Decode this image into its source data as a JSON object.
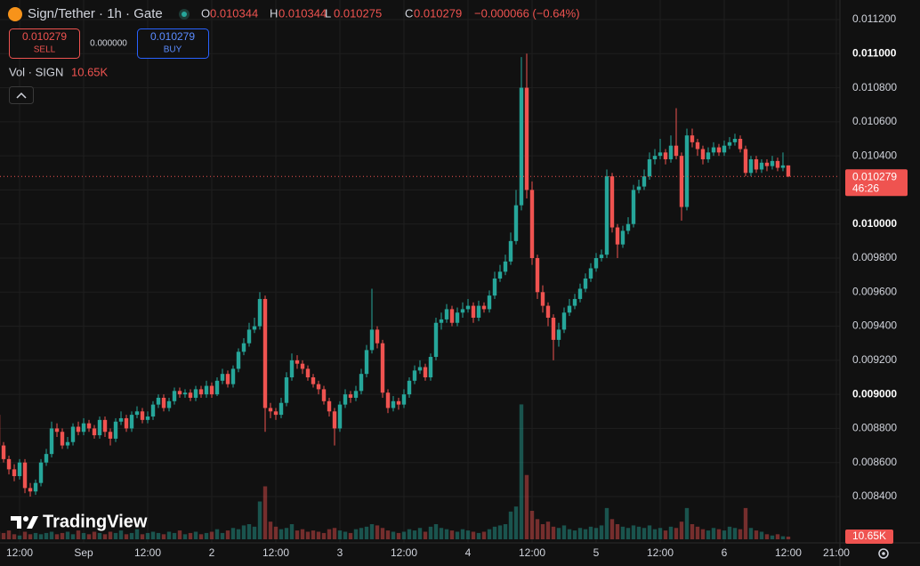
{
  "chart_data": {
    "type": "candlestick",
    "title": "Sign/Tether · 1h · Gate",
    "ohlc_letters": [
      "O",
      "H",
      "L",
      "C"
    ],
    "change_label": "−0.000066 (−0.64%)",
    "sell_label": "SELL",
    "buy_label": "BUY",
    "spread_label": "0.000000",
    "volume_title": "Vol · SIGN",
    "volume_value_label": "10.65K",
    "countdown": "46:26",
    "watermark": "TradingView",
    "up_color": "#26a69a",
    "down_color": "#ef5350",
    "grid": true,
    "xlim": [
      0.33,
      157.67
    ],
    "xticks": [
      {
        "value": 4,
        "label": "12:00"
      },
      {
        "value": 16,
        "label": "Sep"
      },
      {
        "value": 28,
        "label": "12:00"
      },
      {
        "value": 40,
        "label": "2"
      },
      {
        "value": 52,
        "label": "12:00"
      },
      {
        "value": 64,
        "label": "3"
      },
      {
        "value": 76,
        "label": "12:00"
      },
      {
        "value": 88,
        "label": "4"
      },
      {
        "value": 100,
        "label": "12:00"
      },
      {
        "value": 112,
        "label": "5"
      },
      {
        "value": 124,
        "label": "12:00"
      },
      {
        "value": 136,
        "label": "6"
      },
      {
        "value": 148,
        "label": "12:00"
      },
      {
        "value": 157,
        "label": "21:00"
      }
    ],
    "ylim": [
      0.008191,
      0.011315
    ],
    "yticks": [
      {
        "value": 0.0112,
        "label": "0.011200"
      },
      {
        "value": 0.011,
        "label": "0.011000"
      },
      {
        "value": 0.0108,
        "label": "0.010800"
      },
      {
        "value": 0.0106,
        "label": "0.010600"
      },
      {
        "value": 0.0104,
        "label": "0.010400"
      },
      {
        "value": 0.0102,
        "label": "0.010200"
      },
      {
        "value": 0.01,
        "label": "0.010000"
      },
      {
        "value": 0.0098,
        "label": "0.009800"
      },
      {
        "value": 0.0096,
        "label": "0.009600"
      },
      {
        "value": 0.0094,
        "label": "0.009400"
      },
      {
        "value": 0.0092,
        "label": "0.009200"
      },
      {
        "value": 0.009,
        "label": "0.009000"
      },
      {
        "value": 0.0088,
        "label": "0.008800"
      },
      {
        "value": 0.0086,
        "label": "0.008600"
      },
      {
        "value": 0.0084,
        "label": "0.008400"
      }
    ],
    "volume_lim": [
      0,
      600000
    ],
    "open": [
      0.00888,
      0.0087,
      0.00862,
      0.00856,
      0.00852,
      0.0086,
      0.00845,
      0.00843,
      0.00848,
      0.0086,
      0.00865,
      0.0088,
      0.00878,
      0.0087,
      0.00872,
      0.00881,
      0.00878,
      0.00883,
      0.0088,
      0.00876,
      0.00885,
      0.00878,
      0.00874,
      0.00884,
      0.00886,
      0.0088,
      0.00888,
      0.0089,
      0.00885,
      0.00887,
      0.00894,
      0.00898,
      0.00892,
      0.00896,
      0.00902,
      0.009,
      0.00901,
      0.00898,
      0.00903,
      0.009,
      0.00905,
      0.009,
      0.00908,
      0.00912,
      0.00906,
      0.00915,
      0.00925,
      0.0093,
      0.00938,
      0.0094,
      0.00956,
      0.00892,
      0.0089,
      0.00888,
      0.00895,
      0.0091,
      0.0092,
      0.00918,
      0.00915,
      0.0091,
      0.00906,
      0.00903,
      0.00896,
      0.0089,
      0.0088,
      0.00894,
      0.009,
      0.00898,
      0.00902,
      0.00912,
      0.00926,
      0.00938,
      0.0093,
      0.00901,
      0.00892,
      0.00896,
      0.00894,
      0.009,
      0.00908,
      0.00914,
      0.00916,
      0.0091,
      0.00922,
      0.00942,
      0.00944,
      0.0095,
      0.00942,
      0.00948,
      0.0095,
      0.00952,
      0.00945,
      0.00952,
      0.0095,
      0.00958,
      0.00968,
      0.00972,
      0.00978,
      0.0099,
      0.01011,
      0.0108,
      0.0102,
      0.0098,
      0.0096,
      0.00952,
      0.00945,
      0.00932,
      0.00938,
      0.00948,
      0.00952,
      0.00956,
      0.00962,
      0.00968,
      0.00974,
      0.0098,
      0.00982,
      0.01028,
      0.00998,
      0.00988,
      0.00996,
      0.01,
      0.0102,
      0.01022,
      0.01028,
      0.01038,
      0.0104,
      0.01042,
      0.01038,
      0.01046,
      0.0104,
      0.0101,
      0.01052,
      0.01048,
      0.01044,
      0.01038,
      0.01042,
      0.01045,
      0.01042,
      0.01046,
      0.01048,
      0.0105,
      0.01044,
      0.0103,
      0.01038,
      0.01032,
      0.01036,
      0.01034,
      0.01037,
      0.01033,
      0.010344
    ],
    "high": [
      0.0089,
      0.00872,
      0.00864,
      0.00859,
      0.00862,
      0.00862,
      0.00848,
      0.0085,
      0.00862,
      0.00868,
      0.00884,
      0.00883,
      0.0088,
      0.00875,
      0.00883,
      0.00884,
      0.00886,
      0.00885,
      0.00882,
      0.00887,
      0.00887,
      0.0088,
      0.00886,
      0.0089,
      0.00888,
      0.0089,
      0.00893,
      0.00892,
      0.0089,
      0.00896,
      0.009,
      0.009,
      0.00898,
      0.00904,
      0.00904,
      0.00903,
      0.00903,
      0.00905,
      0.00905,
      0.00908,
      0.00907,
      0.0091,
      0.00915,
      0.00914,
      0.00917,
      0.00927,
      0.00933,
      0.00942,
      0.00945,
      0.0096,
      0.00958,
      0.00895,
      0.00892,
      0.00898,
      0.00913,
      0.00924,
      0.00923,
      0.0092,
      0.00917,
      0.00912,
      0.00908,
      0.00905,
      0.00898,
      0.00892,
      0.00896,
      0.00903,
      0.00902,
      0.00905,
      0.00915,
      0.00929,
      0.00962,
      0.0094,
      0.00932,
      0.00903,
      0.00899,
      0.00898,
      0.00903,
      0.0091,
      0.00917,
      0.0092,
      0.00918,
      0.00924,
      0.00945,
      0.00948,
      0.00953,
      0.00952,
      0.00951,
      0.00954,
      0.00956,
      0.00954,
      0.00955,
      0.00954,
      0.00961,
      0.00972,
      0.00976,
      0.00982,
      0.00995,
      0.0102,
      0.01098,
      0.011,
      0.01025,
      0.00982,
      0.00964,
      0.00954,
      0.00947,
      0.00942,
      0.00951,
      0.00956,
      0.00959,
      0.00965,
      0.00971,
      0.00977,
      0.00983,
      0.00985,
      0.01032,
      0.0103,
      0.01,
      0.00999,
      0.01004,
      0.01023,
      0.01026,
      0.01032,
      0.01042,
      0.01044,
      0.0105,
      0.01044,
      0.01052,
      0.01068,
      0.01042,
      0.01056,
      0.01056,
      0.0105,
      0.01046,
      0.01045,
      0.01048,
      0.01047,
      0.01049,
      0.01051,
      0.01053,
      0.01052,
      0.01046,
      0.0104,
      0.0104,
      0.01038,
      0.01038,
      0.0104,
      0.01039,
      0.01042,
      0.010344
    ],
    "low": [
      0.00868,
      0.0086,
      0.00853,
      0.00849,
      0.0085,
      0.00842,
      0.0084,
      0.00841,
      0.00846,
      0.00858,
      0.00863,
      0.00875,
      0.00868,
      0.00868,
      0.0087,
      0.00876,
      0.00876,
      0.00878,
      0.00874,
      0.00874,
      0.00875,
      0.0087,
      0.00872,
      0.00882,
      0.00878,
      0.00878,
      0.00886,
      0.00883,
      0.00883,
      0.00885,
      0.00892,
      0.0089,
      0.0089,
      0.00894,
      0.00898,
      0.00898,
      0.00896,
      0.00896,
      0.00898,
      0.00898,
      0.00898,
      0.00899,
      0.00906,
      0.00904,
      0.00904,
      0.00913,
      0.00923,
      0.00928,
      0.00936,
      0.00938,
      0.00878,
      0.00886,
      0.00885,
      0.00886,
      0.00893,
      0.00908,
      0.00915,
      0.00912,
      0.00908,
      0.00904,
      0.009,
      0.00894,
      0.00887,
      0.0087,
      0.00878,
      0.00892,
      0.00895,
      0.00896,
      0.009,
      0.0091,
      0.00924,
      0.00927,
      0.00898,
      0.00889,
      0.0089,
      0.00891,
      0.00892,
      0.00898,
      0.00906,
      0.00912,
      0.00908,
      0.00908,
      0.0092,
      0.00938,
      0.00942,
      0.0094,
      0.0094,
      0.00945,
      0.00948,
      0.00942,
      0.00943,
      0.00948,
      0.00948,
      0.00956,
      0.00966,
      0.0097,
      0.00976,
      0.00988,
      0.01008,
      0.01015,
      0.00976,
      0.00956,
      0.00948,
      0.0094,
      0.0092,
      0.00928,
      0.00936,
      0.00946,
      0.0095,
      0.00954,
      0.0096,
      0.00966,
      0.00972,
      0.00978,
      0.0098,
      0.00995,
      0.0098,
      0.00986,
      0.00994,
      0.00998,
      0.01018,
      0.0102,
      0.01026,
      0.01035,
      0.01038,
      0.01035,
      0.01036,
      0.01038,
      0.01002,
      0.01008,
      0.01045,
      0.0104,
      0.01035,
      0.01036,
      0.0104,
      0.0104,
      0.0104,
      0.01044,
      0.01046,
      0.01042,
      0.01028,
      0.01028,
      0.0103,
      0.0103,
      0.01031,
      0.01032,
      0.01031,
      0.01031,
      0.010275
    ],
    "close": [
      0.0087,
      0.00862,
      0.00856,
      0.00852,
      0.0086,
      0.00845,
      0.00843,
      0.00848,
      0.0086,
      0.00865,
      0.0088,
      0.00878,
      0.0087,
      0.00872,
      0.00881,
      0.00878,
      0.00883,
      0.0088,
      0.00876,
      0.00885,
      0.00878,
      0.00874,
      0.00884,
      0.00886,
      0.0088,
      0.00888,
      0.0089,
      0.00885,
      0.00887,
      0.00894,
      0.00898,
      0.00892,
      0.00896,
      0.00902,
      0.009,
      0.00901,
      0.00898,
      0.00903,
      0.009,
      0.00905,
      0.009,
      0.00908,
      0.00912,
      0.00906,
      0.00915,
      0.00925,
      0.0093,
      0.00938,
      0.0094,
      0.00956,
      0.00892,
      0.0089,
      0.00888,
      0.00895,
      0.0091,
      0.0092,
      0.00918,
      0.00915,
      0.0091,
      0.00906,
      0.00903,
      0.00896,
      0.0089,
      0.0088,
      0.00894,
      0.009,
      0.00898,
      0.00902,
      0.00912,
      0.00926,
      0.00938,
      0.0093,
      0.00901,
      0.00892,
      0.00896,
      0.00894,
      0.009,
      0.00908,
      0.00914,
      0.00916,
      0.0091,
      0.00922,
      0.00942,
      0.00944,
      0.0095,
      0.00942,
      0.00948,
      0.0095,
      0.00952,
      0.00945,
      0.00952,
      0.0095,
      0.00958,
      0.00968,
      0.00972,
      0.00978,
      0.0099,
      0.01011,
      0.0108,
      0.0102,
      0.0098,
      0.0096,
      0.00952,
      0.00945,
      0.00932,
      0.00938,
      0.00948,
      0.00952,
      0.00956,
      0.00962,
      0.00968,
      0.00974,
      0.0098,
      0.00982,
      0.01028,
      0.00998,
      0.00988,
      0.00996,
      0.01,
      0.0102,
      0.01022,
      0.01028,
      0.01038,
      0.0104,
      0.01042,
      0.01038,
      0.01046,
      0.0104,
      0.0101,
      0.01052,
      0.01048,
      0.01044,
      0.01038,
      0.01042,
      0.01045,
      0.01042,
      0.01046,
      0.01048,
      0.0105,
      0.01044,
      0.0103,
      0.01038,
      0.01032,
      0.01036,
      0.01034,
      0.01037,
      0.01033,
      0.010344,
      0.010279
    ],
    "volume": [
      30000,
      25000,
      35000,
      20000,
      15000,
      30000,
      20000,
      25000,
      20000,
      25000,
      30000,
      20000,
      25000,
      30000,
      20000,
      35000,
      25000,
      20000,
      30000,
      25000,
      20000,
      30000,
      25000,
      35000,
      20000,
      25000,
      40000,
      20000,
      25000,
      30000,
      25000,
      20000,
      30000,
      25000,
      35000,
      20000,
      25000,
      30000,
      20000,
      25000,
      30000,
      40000,
      25000,
      35000,
      45000,
      40000,
      55000,
      60000,
      50000,
      150000,
      210000,
      70000,
      50000,
      40000,
      45000,
      60000,
      35000,
      40000,
      30000,
      35000,
      30000,
      25000,
      40000,
      45000,
      35000,
      30000,
      25000,
      40000,
      45000,
      50000,
      60000,
      55000,
      45000,
      35000,
      30000,
      25000,
      30000,
      40000,
      35000,
      45000,
      30000,
      50000,
      60000,
      45000,
      40000,
      35000,
      30000,
      40000,
      35000,
      30000,
      25000,
      30000,
      40000,
      50000,
      55000,
      60000,
      110000,
      130000,
      535000,
      255000,
      113000,
      80000,
      60000,
      70000,
      50000,
      45000,
      55000,
      40000,
      35000,
      45000,
      40000,
      50000,
      45000,
      55000,
      124000,
      80000,
      60000,
      50000,
      45000,
      55000,
      50000,
      45000,
      55000,
      40000,
      45000,
      35000,
      50000,
      45000,
      70000,
      124000,
      60000,
      50000,
      40000,
      35000,
      45000,
      40000,
      35000,
      50000,
      45000,
      40000,
      124000,
      45000,
      35000,
      30000,
      20000,
      15000,
      20000,
      12000,
      10650
    ]
  }
}
